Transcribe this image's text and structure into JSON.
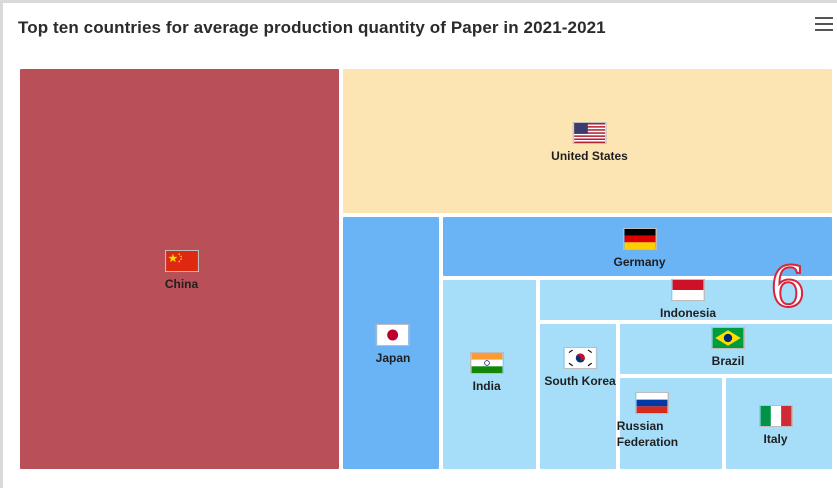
{
  "header": {
    "title": "Top ten countries for average production quantity of Paper in 2021-2021",
    "menu_icon": "hamburger-menu-icon"
  },
  "watermark": "6",
  "colors": {
    "china": "#b94f57",
    "united_states": "#fde5b3",
    "japan": "#6ab3f5",
    "germany": "#6ab3f5",
    "others": "#a6defa"
  },
  "chart_data": {
    "type": "treemap",
    "title": "Top ten countries for average production quantity of Paper in 2021-2021",
    "items": [
      {
        "name": "China",
        "value": 100,
        "flag": "china-flag-icon",
        "color": "#b94f57"
      },
      {
        "name": "United States",
        "value": 44,
        "flag": "united-states-flag-icon",
        "color": "#fde5b3"
      },
      {
        "name": "Japan",
        "value": 19.6,
        "flag": "japan-flag-icon",
        "color": "#6ab3f5"
      },
      {
        "name": "Germany",
        "value": 12.8,
        "flag": "germany-flag-icon",
        "color": "#6ab3f5"
      },
      {
        "name": "India",
        "value": 15.5,
        "flag": "india-flag-icon",
        "color": "#a6defa"
      },
      {
        "name": "Indonesia",
        "value": 9.5,
        "flag": "indonesia-flag-icon",
        "color": "#a6defa"
      },
      {
        "name": "South Korea",
        "value": 12.3,
        "flag": "south-korea-flag-icon",
        "color": "#a6defa"
      },
      {
        "name": "Brazil",
        "value": 10.4,
        "flag": "brazil-flag-icon",
        "color": "#a6defa"
      },
      {
        "name": "Russian Federation",
        "value": 9.4,
        "flag": "russia-flag-icon",
        "color": "#a6defa"
      },
      {
        "name": "Italy",
        "value": 8.2,
        "flag": "italy-flag-icon",
        "color": "#a6defa"
      }
    ]
  }
}
